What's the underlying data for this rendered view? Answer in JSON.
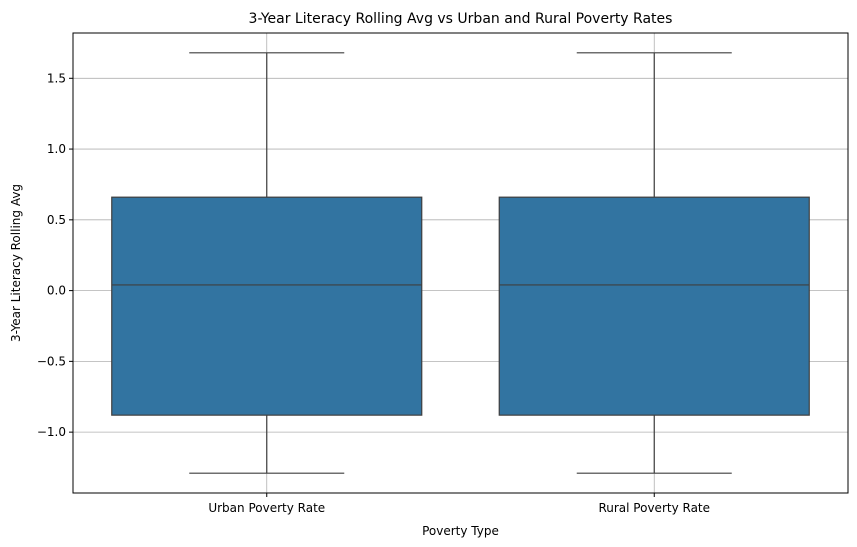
{
  "chart_data": {
    "type": "box",
    "title": "3-Year Literacy Rolling Avg vs Urban and Rural Poverty Rates",
    "xlabel": "Poverty Type",
    "ylabel": "3-Year Literacy Rolling Avg",
    "categories": [
      "Urban Poverty Rate",
      "Rural Poverty Rate"
    ],
    "boxes": [
      {
        "category": "Urban Poverty Rate",
        "whisker_low": -1.29,
        "q1": -0.88,
        "median": 0.04,
        "q3": 0.66,
        "whisker_high": 1.68
      },
      {
        "category": "Rural Poverty Rate",
        "whisker_low": -1.29,
        "q1": -0.88,
        "median": 0.04,
        "q3": 0.66,
        "whisker_high": 1.68
      }
    ],
    "ylim": [
      -1.43,
      1.82
    ],
    "yticks": [
      -1.0,
      -0.5,
      0.0,
      0.5,
      1.0,
      1.5
    ],
    "ytick_labels": [
      "−1.0",
      "−0.5",
      "0.0",
      "0.5",
      "1.0",
      "1.5"
    ],
    "grid": true,
    "box_color": "#3274a1",
    "line_color": "#3f3f3f",
    "grid_color": "#b0b0b0"
  }
}
